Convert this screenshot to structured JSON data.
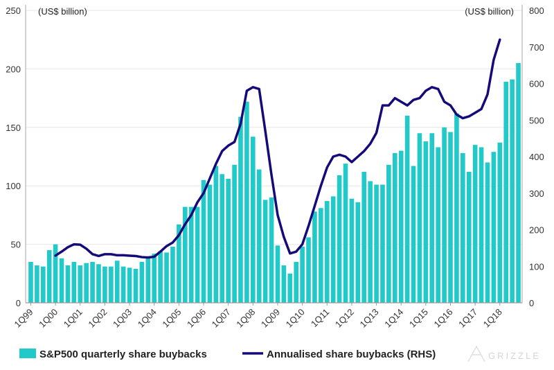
{
  "chart_data": {
    "type": "bar+line",
    "left_unit_label": "(US$ billion)",
    "right_unit_label": "(US$ billion)",
    "left_axis": {
      "min": 0,
      "max": 250,
      "ticks": [
        0,
        50,
        100,
        150,
        200,
        250
      ]
    },
    "right_axis": {
      "min": 0,
      "max": 800,
      "ticks": [
        0,
        100,
        200,
        300,
        400,
        500,
        600,
        700,
        800
      ]
    },
    "x_tick_labels": [
      "1Q99",
      "1Q00",
      "1Q01",
      "1Q02",
      "1Q03",
      "1Q04",
      "1Q05",
      "1Q06",
      "1Q07",
      "1Q08",
      "1Q09",
      "1Q10",
      "1Q11",
      "1Q12",
      "1Q13",
      "1Q14",
      "1Q15",
      "1Q16",
      "1Q17",
      "1Q18"
    ],
    "quarters_start": "1Q99",
    "series": [
      {
        "name": "S&P500 quarterly share buybacks",
        "type": "bar",
        "axis": "left",
        "color": "#21c9c8",
        "values": [
          35,
          32,
          31,
          45,
          50,
          38,
          32,
          35,
          32,
          34,
          35,
          33,
          31,
          31,
          36,
          31,
          30,
          29,
          35,
          38,
          42,
          44,
          43,
          48,
          67,
          82,
          82,
          82,
          105,
          101,
          117,
          110,
          106,
          118,
          159,
          172,
          142,
          114,
          88,
          90,
          49,
          32,
          25,
          35,
          48,
          56,
          78,
          81,
          87,
          91,
          109,
          119,
          89,
          86,
          112,
          104,
          101,
          101,
          118,
          128,
          130,
          160,
          117,
          145,
          138,
          145,
          133,
          150,
          146,
          162,
          128,
          112,
          135,
          133,
          120,
          129,
          137,
          189,
          191,
          205
        ]
      },
      {
        "name": "Annualised share buybacks (RHS)",
        "type": "line",
        "axis": "right",
        "color": "#150a7a",
        "start_index": 4,
        "values": [
          129,
          140,
          152,
          160,
          159,
          148,
          133,
          128,
          133,
          133,
          130,
          130,
          129,
          128,
          125,
          124,
          126,
          140,
          155,
          165,
          185,
          215,
          240,
          275,
          300,
          340,
          380,
          415,
          430,
          440,
          490,
          580,
          590,
          585,
          470,
          350,
          240,
          180,
          135,
          140,
          160,
          210,
          265,
          320,
          370,
          400,
          405,
          400,
          385,
          400,
          415,
          435,
          465,
          540,
          540,
          560,
          550,
          540,
          555,
          560,
          580,
          590,
          585,
          550,
          540,
          515,
          505,
          510,
          520,
          530,
          570,
          665,
          720
        ]
      }
    ]
  },
  "legend": {
    "bars_label": "S&P500 quarterly share buybacks",
    "line_label": "Annualised share buybacks (RHS)"
  },
  "logo": {
    "text": "GRIZZLE"
  }
}
